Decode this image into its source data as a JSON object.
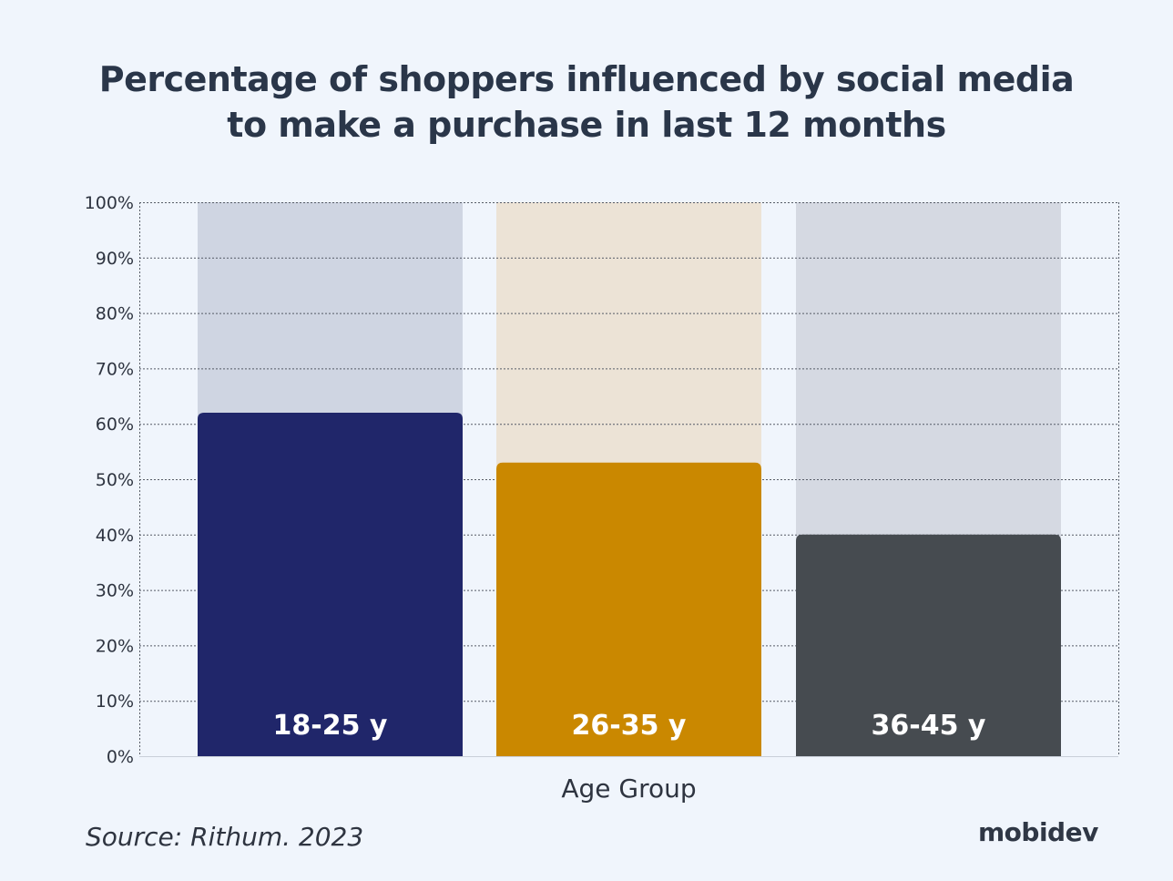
{
  "title_lines": [
    "Percentage of shoppers influenced by social media",
    "to make a purchase in last 12 months"
  ],
  "source": "Source: Rithum. 2023",
  "logo": "mobidev",
  "colors": {
    "background": "#f0f5fc",
    "bar_fill": [
      "#20266a",
      "#ca8800",
      "#464b50"
    ],
    "bar_track": [
      "#cfd5e2",
      "#ece3d6",
      "#d5d9e2"
    ],
    "bar_label": "#ffffff",
    "grid": "#555b66",
    "text": "#2a3649"
  },
  "chart_data": {
    "type": "bar",
    "title": "Percentage of shoppers influenced by social media to make a purchase in last 12 months",
    "xlabel": "Age Group",
    "ylabel": "",
    "categories": [
      "18-25 y",
      "26-35 y",
      "36-45 y"
    ],
    "values": [
      62,
      53,
      40
    ],
    "track_max": 100,
    "ylim": [
      0,
      100
    ],
    "yticks": [
      0,
      10,
      20,
      30,
      40,
      50,
      60,
      70,
      80,
      90,
      100
    ],
    "ytick_labels": [
      "0%",
      "10%",
      "20%",
      "30%",
      "40%",
      "50%",
      "60%",
      "70%",
      "80%",
      "90%",
      "100%"
    ],
    "grid": true
  }
}
